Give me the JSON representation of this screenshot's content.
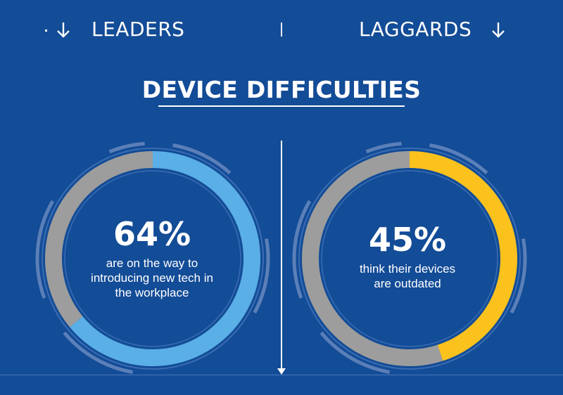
{
  "header": {
    "leaders_label": "LEADERS",
    "laggards_label": "LAGGARDS",
    "arrow_icon": "arrow-down-icon"
  },
  "title": "DEVICE DIFFICULTIES",
  "colors": {
    "background": "#134c97",
    "leaders_accent": "#5aafe6",
    "laggards_accent": "#fbc21e",
    "remainder": "#9d9d9d",
    "ring_outline": "#3a6db2"
  },
  "chart_data": [
    {
      "type": "pie",
      "group": "LEADERS",
      "value_percent": 64,
      "value_label": "64%",
      "description": "are on the way to\nintroducing new tech in\nthe workplace"
    },
    {
      "type": "pie",
      "group": "LAGGARDS",
      "value_percent": 45,
      "value_label": "45%",
      "description": "think their devices\nare outdated"
    }
  ]
}
